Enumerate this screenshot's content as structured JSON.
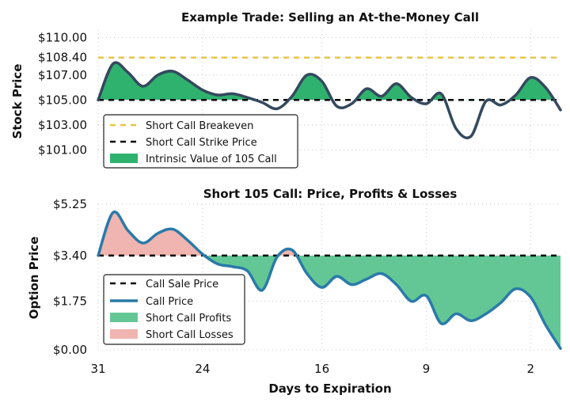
{
  "chart_data": [
    {
      "type": "line",
      "title": "Example Trade: Selling an At-the-Money Call",
      "xlabel": "",
      "ylabel": "Stock Price",
      "xlim": [
        31,
        0
      ],
      "ylim": [
        100.2,
        110.6
      ],
      "yticks": [
        "$101.00",
        "$103.00",
        "$105.00",
        "$107.00",
        "$108.40",
        "$110.00"
      ],
      "ytick_values": [
        101,
        103,
        105,
        107,
        108.4,
        110
      ],
      "grid": true,
      "legend_position": "lower-left",
      "reference_lines": [
        {
          "name": "Short Call Breakeven",
          "value": 108.4,
          "color": "#E8C547",
          "style": "dashed"
        },
        {
          "name": "Short Call Strike Price",
          "value": 105.0,
          "color": "#000000",
          "style": "dashed"
        }
      ],
      "fill": {
        "name": "Intrinsic Value of 105 Call",
        "color": "#2FB26E",
        "baseline": 105.0
      },
      "series": [
        {
          "color": "#34495E",
          "x": [
            31,
            30,
            29,
            28,
            27,
            26,
            25,
            24,
            23,
            22,
            21,
            20,
            19,
            18,
            17,
            16,
            15,
            14,
            13,
            12,
            11,
            10,
            9,
            8,
            7,
            6,
            5,
            4,
            3,
            2,
            1,
            0
          ],
          "y": [
            105.0,
            107.9,
            107.2,
            106.1,
            107.0,
            107.3,
            106.6,
            105.8,
            105.4,
            105.5,
            105.2,
            104.8,
            104.3,
            105.3,
            107.0,
            106.5,
            104.5,
            104.7,
            105.9,
            105.3,
            106.3,
            105.2,
            104.7,
            105.5,
            102.7,
            102.1,
            104.9,
            104.6,
            105.4,
            106.8,
            106.0,
            104.2
          ]
        }
      ]
    },
    {
      "type": "area",
      "title": "Short 105 Call: Price, Profits & Losses",
      "xlabel": "Days to Expiration",
      "ylabel": "Option Price",
      "xlim": [
        31,
        0
      ],
      "xticks": [
        "31",
        "24",
        "16",
        "9",
        "2"
      ],
      "xtick_values": [
        31,
        24,
        16,
        9,
        2
      ],
      "ylim": [
        0,
        5.25
      ],
      "yticks": [
        "$0.00",
        "$1.75",
        "$3.40",
        "$5.25"
      ],
      "ytick_values": [
        0,
        1.75,
        3.4,
        5.25
      ],
      "grid": true,
      "legend_position": "lower-left",
      "reference_lines": [
        {
          "name": "Call Sale Price",
          "value": 3.4,
          "color": "#000000",
          "style": "dashed"
        }
      ],
      "fills": [
        {
          "name": "Short Call Profits",
          "color": "#63C795",
          "baseline": 3.4,
          "where": "below"
        },
        {
          "name": "Short Call Losses",
          "color": "#F0B5B0",
          "baseline": 3.4,
          "where": "above"
        }
      ],
      "series": [
        {
          "name": "Call Price",
          "color": "#2A7AA8",
          "x": [
            31,
            30,
            29,
            28,
            27,
            26,
            25,
            24,
            23,
            22,
            21,
            20,
            19,
            18,
            17,
            16,
            15,
            14,
            13,
            12,
            11,
            10,
            9,
            8,
            7,
            6,
            5,
            4,
            3,
            2,
            1,
            0
          ],
          "y": [
            3.4,
            4.95,
            4.3,
            3.85,
            4.2,
            4.35,
            3.95,
            3.45,
            3.1,
            3.0,
            2.85,
            2.15,
            3.35,
            3.6,
            2.75,
            2.25,
            2.65,
            2.35,
            2.55,
            2.75,
            2.35,
            1.75,
            1.95,
            0.95,
            1.3,
            1.05,
            1.3,
            1.7,
            2.2,
            1.9,
            0.9,
            0.05
          ]
        }
      ]
    }
  ],
  "colors": {
    "stock_line": "#34495E",
    "intrinsic_fill": "#2FB26E",
    "breakeven": "#E8C547",
    "call_line": "#2A7AA8",
    "profit_fill": "#63C795",
    "loss_fill": "#F0B5B0"
  }
}
